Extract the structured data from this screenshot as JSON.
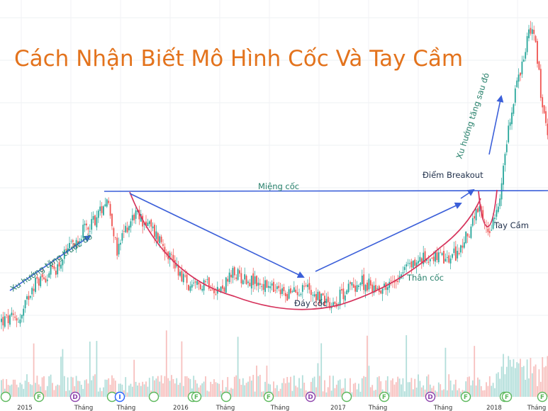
{
  "title": "Cách Nhận Biết Mô Hình Cốc Và Tay Cầm",
  "annotations": {
    "prior_uptrend": "Xu hướng tăng trước đó",
    "cup_lip": "Miệng cốc",
    "breakout_point": "Điểm Breakout",
    "later_uptrend": "Xu hướng tăng sau đó",
    "handle": "Tay Cầm",
    "cup_body": "Thân cốc",
    "cup_bottom": "Đáy cốc"
  },
  "colors": {
    "title": "#e3731d",
    "annotation_text": "#27806b",
    "arrow_blue": "#3b5fd9",
    "cup_curve": "#d6335c",
    "candle_up": "#26a69a",
    "candle_down": "#ef5350",
    "event_green": "#5cb85c",
    "event_purple": "#8e44ad",
    "event_blue": "#2962ff"
  },
  "chart_data": {
    "type": "candlestick",
    "title": "Cách Nhận Biết Mô Hình Cốc Và Tay Cầm",
    "xlabel": "",
    "ylabel": "",
    "grid": true,
    "x_ticks": [
      "2015",
      "Tháng",
      "Tháng",
      "2016",
      "Tháng",
      "Tháng",
      "2017",
      "Tháng",
      "Tháng",
      "2018",
      "Tháng"
    ],
    "price_path": [
      [
        0,
        10
      ],
      [
        30,
        10.5
      ],
      [
        45,
        16
      ],
      [
        80,
        19
      ],
      [
        110,
        24
      ],
      [
        140,
        28
      ],
      [
        150,
        31
      ],
      [
        158,
        27
      ],
      [
        165,
        21
      ],
      [
        175,
        25
      ],
      [
        190,
        28
      ],
      [
        210,
        26
      ],
      [
        230,
        23
      ],
      [
        250,
        19
      ],
      [
        270,
        15
      ],
      [
        290,
        17
      ],
      [
        310,
        15
      ],
      [
        330,
        18
      ],
      [
        350,
        17
      ],
      [
        370,
        16
      ],
      [
        390,
        15
      ],
      [
        410,
        14.5
      ],
      [
        430,
        16
      ],
      [
        450,
        14
      ],
      [
        470,
        13
      ],
      [
        490,
        15.5
      ],
      [
        510,
        16.5
      ],
      [
        530,
        15.5
      ],
      [
        550,
        16
      ],
      [
        570,
        19
      ],
      [
        590,
        20
      ],
      [
        610,
        21
      ],
      [
        630,
        20
      ],
      [
        650,
        22
      ],
      [
        665,
        26
      ],
      [
        675,
        28.5
      ],
      [
        683,
        26
      ],
      [
        690,
        25
      ],
      [
        697,
        28
      ],
      [
        703,
        30
      ],
      [
        712,
        37
      ],
      [
        722,
        46
      ],
      [
        735,
        52
      ],
      [
        745,
        58
      ],
      [
        752,
        60
      ],
      [
        758,
        54
      ],
      [
        765,
        46
      ],
      [
        773,
        40
      ]
    ],
    "event_markers": [
      {
        "x": 8,
        "label": "",
        "kind": "green"
      },
      {
        "x": 55,
        "label": "F",
        "kind": "green"
      },
      {
        "x": 106,
        "label": "D",
        "kind": "purple"
      },
      {
        "x": 158,
        "label": "",
        "kind": "green"
      },
      {
        "x": 169,
        "label": "I",
        "kind": "blue"
      },
      {
        "x": 217,
        "label": "",
        "kind": "green"
      },
      {
        "x": 272,
        "label": "",
        "kind": "green"
      },
      {
        "x": 277,
        "label": "F",
        "kind": "green"
      },
      {
        "x": 319,
        "label": "",
        "kind": "green"
      },
      {
        "x": 379,
        "label": "F",
        "kind": "green"
      },
      {
        "x": 438,
        "label": "D",
        "kind": "purple"
      },
      {
        "x": 489,
        "label": "",
        "kind": "green"
      },
      {
        "x": 542,
        "label": "F",
        "kind": "green"
      },
      {
        "x": 607,
        "label": "D",
        "kind": "purple"
      },
      {
        "x": 657,
        "label": "F",
        "kind": "green"
      },
      {
        "x": 712,
        "label": "",
        "kind": "green"
      },
      {
        "x": 715,
        "label": "F",
        "kind": "green"
      },
      {
        "x": 765,
        "label": "F",
        "kind": "green"
      }
    ]
  }
}
